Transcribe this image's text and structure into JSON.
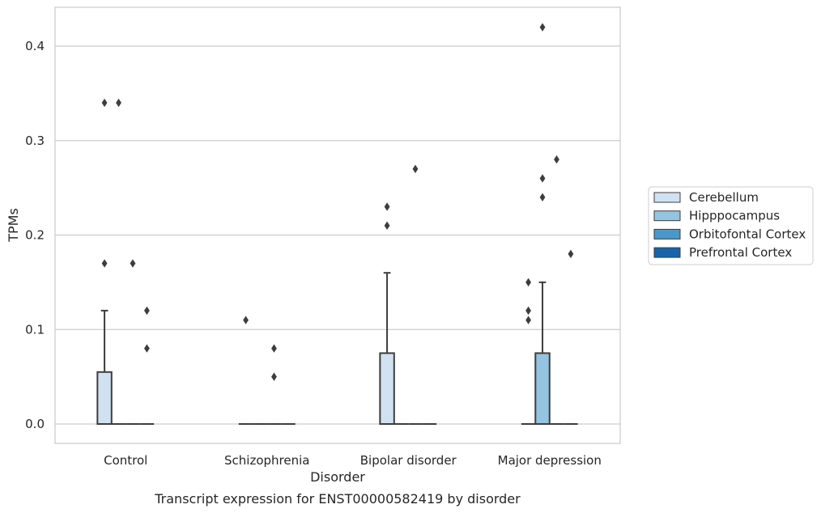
{
  "chart_data": {
    "type": "box",
    "caption": "Transcript expression for ENST00000582419 by disorder",
    "xlabel": "Disorder",
    "ylabel": "TPMs",
    "ylim": [
      -0.02,
      0.442
    ],
    "yticks": [
      0.0,
      0.1,
      0.2,
      0.3,
      0.4
    ],
    "ytick_labels": [
      "0.0",
      "0.1",
      "0.2",
      "0.3",
      "0.4"
    ],
    "categories": [
      "Control",
      "Schizophrenia",
      "Bipolar disorder",
      "Major depression"
    ],
    "grid": "horizontal",
    "legend_position": "right",
    "series": [
      {
        "name": "Cerebellum",
        "color": "#d0e1f2",
        "boxes": [
          {
            "q1": 0.0,
            "median": 0.0,
            "q3": 0.055,
            "whisker_low": 0.0,
            "whisker_high": 0.12,
            "outliers": [
              0.17,
              0.34
            ]
          },
          {
            "q1": 0.0,
            "median": 0.0,
            "q3": 0.0,
            "whisker_low": 0.0,
            "whisker_high": 0.0,
            "outliers": []
          },
          {
            "q1": 0.0,
            "median": 0.0,
            "q3": 0.075,
            "whisker_low": 0.0,
            "whisker_high": 0.16,
            "outliers": [
              0.21,
              0.23
            ]
          },
          {
            "q1": 0.0,
            "median": 0.0,
            "q3": 0.0,
            "whisker_low": 0.0,
            "whisker_high": 0.0,
            "outliers": [
              0.11,
              0.12,
              0.15
            ]
          }
        ]
      },
      {
        "name": "Hipppocampus",
        "color": "#94c4df",
        "boxes": [
          {
            "q1": 0.0,
            "median": 0.0,
            "q3": 0.0,
            "whisker_low": 0.0,
            "whisker_high": 0.0,
            "outliers": [
              0.34
            ]
          },
          {
            "q1": 0.0,
            "median": 0.0,
            "q3": 0.0,
            "whisker_low": 0.0,
            "whisker_high": 0.0,
            "outliers": []
          },
          {
            "q1": 0.0,
            "median": 0.0,
            "q3": 0.0,
            "whisker_low": 0.0,
            "whisker_high": 0.0,
            "outliers": []
          },
          {
            "q1": 0.0,
            "median": 0.0,
            "q3": 0.075,
            "whisker_low": 0.0,
            "whisker_high": 0.15,
            "outliers": [
              0.24,
              0.26,
              0.42
            ]
          }
        ]
      },
      {
        "name": "Orbitofontal Cortex",
        "color": "#4a98c9",
        "boxes": [
          {
            "q1": 0.0,
            "median": 0.0,
            "q3": 0.0,
            "whisker_low": 0.0,
            "whisker_high": 0.0,
            "outliers": [
              0.17
            ]
          },
          {
            "q1": 0.0,
            "median": 0.0,
            "q3": 0.0,
            "whisker_low": 0.0,
            "whisker_high": 0.0,
            "outliers": [
              0.05,
              0.08
            ]
          },
          {
            "q1": 0.0,
            "median": 0.0,
            "q3": 0.0,
            "whisker_low": 0.0,
            "whisker_high": 0.0,
            "outliers": [
              0.27
            ]
          },
          {
            "q1": 0.0,
            "median": 0.0,
            "q3": 0.0,
            "whisker_low": 0.0,
            "whisker_high": 0.0,
            "outliers": [
              0.28
            ]
          }
        ]
      },
      {
        "name": "Prefrontal Cortex",
        "color": "#1764ab",
        "boxes": [
          {
            "q1": 0.0,
            "median": 0.0,
            "q3": 0.0,
            "whisker_low": 0.0,
            "whisker_high": 0.0,
            "outliers": [
              0.08,
              0.12
            ]
          },
          {
            "q1": 0.0,
            "median": 0.0,
            "q3": 0.0,
            "whisker_low": 0.0,
            "whisker_high": 0.0,
            "outliers": []
          },
          {
            "q1": 0.0,
            "median": 0.0,
            "q3": 0.0,
            "whisker_low": 0.0,
            "whisker_high": 0.0,
            "outliers": []
          },
          {
            "q1": 0.0,
            "median": 0.0,
            "q3": 0.0,
            "whisker_low": 0.0,
            "whisker_high": 0.0,
            "outliers": [
              0.18
            ]
          }
        ]
      }
    ],
    "extra_outliers": [
      {
        "category": "Schizophrenia",
        "series": "Cerebellum",
        "value": 0.11
      }
    ]
  }
}
